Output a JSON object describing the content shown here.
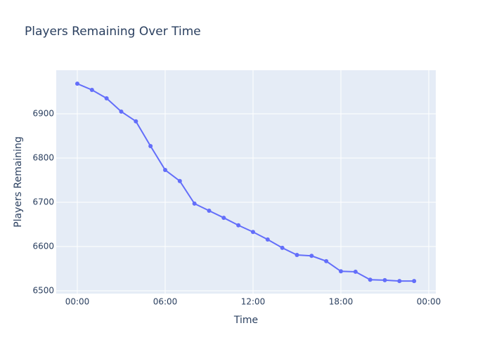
{
  "chart_data": {
    "type": "line",
    "title": "Players Remaining Over Time",
    "x_label": "Time",
    "y_label": "Players Remaining",
    "x": [
      0,
      1,
      2,
      3,
      4,
      5,
      6,
      7,
      8,
      9,
      10,
      11,
      12,
      13,
      14,
      15,
      16,
      17,
      18,
      19,
      20,
      21,
      22,
      23
    ],
    "series": [
      {
        "name": "Players Remaining",
        "color": "#636efa",
        "values": [
          6968,
          6954,
          6935,
          6905,
          6883,
          6827,
          6773,
          6748,
          6697,
          6681,
          6665,
          6648,
          6633,
          6616,
          6597,
          6581,
          6579,
          6567,
          6544,
          6543,
          6525,
          6524,
          6522,
          6522
        ]
      }
    ],
    "xlim": [
      -1.44,
      24.48
    ],
    "xticks": [
      {
        "value": 0,
        "label": "00:00"
      },
      {
        "value": 6,
        "label": "06:00"
      },
      {
        "value": 12,
        "label": "12:00"
      },
      {
        "value": 18,
        "label": "18:00"
      },
      {
        "value": 24,
        "label": "00:00"
      }
    ],
    "ylim": [
      6493.7,
      6998.4
    ],
    "yticks": [
      6500,
      6600,
      6700,
      6800,
      6900
    ],
    "grid": true
  }
}
